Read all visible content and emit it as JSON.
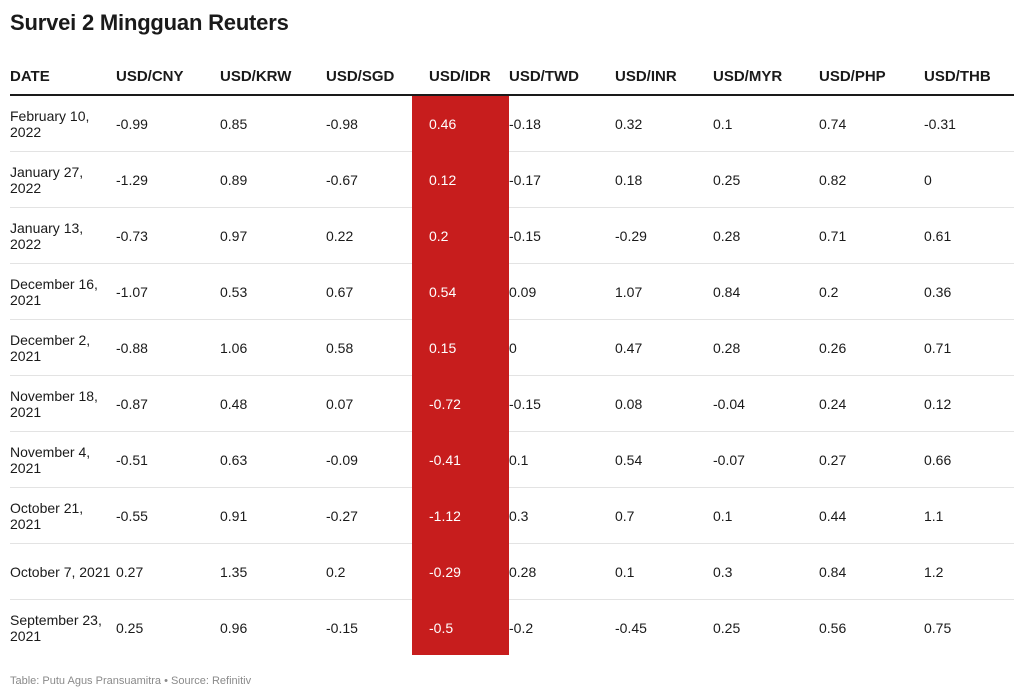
{
  "title": "Survei 2 Mingguan Reuters",
  "footer": "Table: Putu Agus Pransuamitra • Source: Refinitiv",
  "highlight_color": "#c71d1d",
  "highlight_column": "USD/IDR",
  "chart_data": {
    "type": "table",
    "title": "Survei 2 Mingguan Reuters",
    "columns": [
      "DATE",
      "USD/CNY",
      "USD/KRW",
      "USD/SGD",
      "USD/IDR",
      "USD/TWD",
      "USD/INR",
      "USD/MYR",
      "USD/PHP",
      "USD/THB"
    ],
    "rows": [
      [
        "February 10, 2022",
        "-0.99",
        "0.85",
        "-0.98",
        "0.46",
        "-0.18",
        "0.32",
        "0.1",
        "0.74",
        "-0.31"
      ],
      [
        "January 27, 2022",
        "-1.29",
        "0.89",
        "-0.67",
        "0.12",
        "-0.17",
        "0.18",
        "0.25",
        "0.82",
        "0"
      ],
      [
        "January 13, 2022",
        "-0.73",
        "0.97",
        "0.22",
        "0.2",
        "-0.15",
        "-0.29",
        "0.28",
        "0.71",
        "0.61"
      ],
      [
        "December 16, 2021",
        "-1.07",
        "0.53",
        "0.67",
        "0.54",
        "0.09",
        "1.07",
        "0.84",
        "0.2",
        "0.36"
      ],
      [
        "December 2, 2021",
        "-0.88",
        "1.06",
        "0.58",
        "0.15",
        "0",
        "0.47",
        "0.28",
        "0.26",
        "0.71"
      ],
      [
        "November 18, 2021",
        "-0.87",
        "0.48",
        "0.07",
        "-0.72",
        "-0.15",
        "0.08",
        "-0.04",
        "0.24",
        "0.12"
      ],
      [
        "November 4, 2021",
        "-0.51",
        "0.63",
        "-0.09",
        "-0.41",
        "0.1",
        "0.54",
        "-0.07",
        "0.27",
        "0.66"
      ],
      [
        "October 21, 2021",
        "-0.55",
        "0.91",
        "-0.27",
        "-1.12",
        "0.3",
        "0.7",
        "0.1",
        "0.44",
        "1.1"
      ],
      [
        "October 7, 2021",
        "0.27",
        "1.35",
        "0.2",
        "-0.29",
        "0.28",
        "0.1",
        "0.3",
        "0.84",
        "1.2"
      ],
      [
        "September 23, 2021",
        "0.25",
        "0.96",
        "-0.15",
        "-0.5",
        "-0.2",
        "-0.45",
        "0.25",
        "0.56",
        "0.75"
      ]
    ]
  }
}
